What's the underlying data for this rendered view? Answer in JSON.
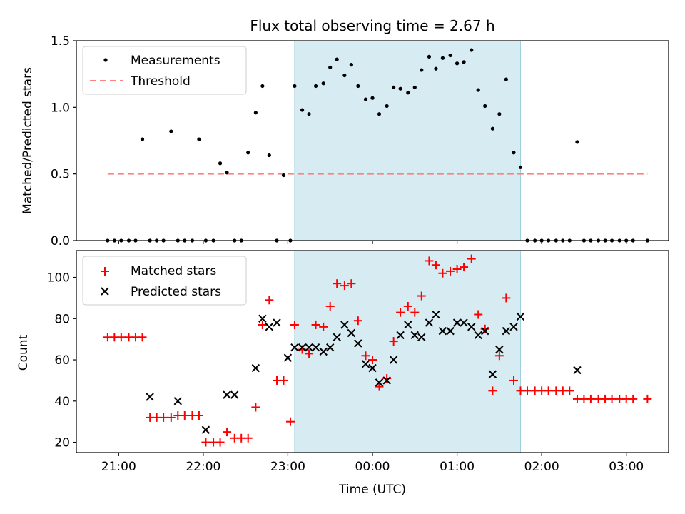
{
  "chart_data": [
    {
      "type": "scatter",
      "title": "Flux total observing time = 2.67 h",
      "ylabel": "Matched/Predicted stars",
      "xlabel": "",
      "xlim": [
        20.5,
        27.5
      ],
      "ylim": [
        0,
        1.5
      ],
      "yticks": [
        0,
        0.5,
        1.0,
        1.5
      ],
      "ytick_labels": [
        "0.0",
        "0.5",
        "1.0",
        "1.5"
      ],
      "highlight_span": [
        23.08,
        25.75
      ],
      "legend": {
        "position": "upper-left",
        "entries": [
          "Measurements",
          "Threshold"
        ]
      },
      "threshold": {
        "name": "Threshold",
        "x": [
          20.87,
          27.25
        ],
        "y": 0.5,
        "color": "#ff8080"
      },
      "series": [
        {
          "name": "Measurements",
          "color": "#000000",
          "x": [
            20.87,
            20.95,
            21.03,
            21.12,
            21.2,
            21.28,
            21.37,
            21.45,
            21.53,
            21.62,
            21.7,
            21.78,
            21.87,
            21.95,
            22.03,
            22.12,
            22.2,
            22.28,
            22.37,
            22.45,
            22.53,
            22.62,
            22.7,
            22.78,
            22.87,
            22.95,
            23.03,
            23.08,
            23.17,
            23.25,
            23.33,
            23.42,
            23.5,
            23.58,
            23.67,
            23.75,
            23.83,
            23.92,
            24.0,
            24.08,
            24.17,
            24.25,
            24.33,
            24.42,
            24.5,
            24.58,
            24.67,
            24.75,
            24.83,
            24.92,
            25.0,
            25.08,
            25.17,
            25.25,
            25.33,
            25.42,
            25.5,
            25.58,
            25.67,
            25.75,
            25.83,
            25.92,
            26.0,
            26.08,
            26.17,
            26.25,
            26.33,
            26.42,
            26.5,
            26.58,
            26.67,
            26.75,
            26.83,
            26.92,
            27.0,
            27.08,
            27.25
          ],
          "y": [
            0,
            0,
            0,
            0,
            0,
            0.76,
            0,
            0,
            0,
            0.82,
            0,
            0,
            0,
            0.76,
            0,
            0,
            0.58,
            0.51,
            0,
            0,
            0.66,
            0.96,
            1.16,
            0.64,
            0,
            0.49,
            0,
            1.16,
            0.98,
            0.95,
            1.16,
            1.18,
            1.3,
            1.36,
            1.24,
            1.32,
            1.16,
            1.06,
            1.07,
            0.95,
            1.01,
            1.15,
            1.14,
            1.11,
            1.15,
            1.28,
            1.38,
            1.29,
            1.37,
            1.39,
            1.33,
            1.34,
            1.43,
            1.13,
            1.01,
            0.84,
            0.95,
            1.21,
            0.66,
            0.55,
            0,
            0,
            0,
            0,
            0,
            0,
            0,
            0.74,
            0,
            0,
            0,
            0,
            0,
            0,
            0,
            0,
            0
          ]
        }
      ]
    },
    {
      "type": "scatter",
      "title": "",
      "xlabel": "Time (UTC)",
      "ylabel": "Count",
      "xlim": [
        20.5,
        27.5
      ],
      "ylim": [
        15,
        113
      ],
      "yticks": [
        20,
        40,
        60,
        80,
        100
      ],
      "xticks": [
        21,
        22,
        23,
        24,
        25,
        26,
        27
      ],
      "xtick_labels": [
        "21:00",
        "22:00",
        "23:00",
        "00:00",
        "01:00",
        "02:00",
        "03:00"
      ],
      "highlight_span": [
        23.08,
        25.75
      ],
      "legend": {
        "position": "upper-left",
        "entries": [
          "Matched stars",
          "Predicted stars"
        ]
      },
      "series": [
        {
          "name": "Matched stars",
          "color": "#ff0000",
          "marker": "plus",
          "x": [
            20.87,
            20.95,
            21.03,
            21.12,
            21.2,
            21.28,
            21.37,
            21.45,
            21.53,
            21.62,
            21.7,
            21.78,
            21.87,
            21.95,
            22.03,
            22.12,
            22.2,
            22.28,
            22.37,
            22.45,
            22.53,
            22.62,
            22.7,
            22.78,
            22.87,
            22.95,
            23.03,
            23.08,
            23.17,
            23.25,
            23.33,
            23.42,
            23.5,
            23.58,
            23.67,
            23.75,
            23.83,
            23.92,
            24.0,
            24.08,
            24.17,
            24.25,
            24.33,
            24.42,
            24.5,
            24.58,
            24.67,
            24.75,
            24.83,
            24.92,
            25.0,
            25.08,
            25.17,
            25.25,
            25.33,
            25.42,
            25.5,
            25.58,
            25.67,
            25.75,
            25.83,
            25.92,
            26.0,
            26.08,
            26.17,
            26.25,
            26.33,
            26.42,
            26.5,
            26.58,
            26.67,
            26.75,
            26.83,
            26.92,
            27.0,
            27.08,
            27.25
          ],
          "y": [
            71,
            71,
            71,
            71,
            71,
            71,
            32,
            32,
            32,
            32,
            33,
            33,
            33,
            33,
            20,
            20,
            20,
            25,
            22,
            22,
            22,
            37,
            77,
            89,
            50,
            50,
            30,
            77,
            65,
            63,
            77,
            76,
            86,
            97,
            96,
            97,
            79,
            62,
            60,
            47,
            51,
            69,
            83,
            86,
            83,
            91,
            108,
            106,
            102,
            103,
            104,
            105,
            109,
            82,
            75,
            45,
            62,
            90,
            50,
            45,
            45,
            45,
            45,
            45,
            45,
            45,
            45,
            41,
            41,
            41,
            41,
            41,
            41,
            41,
            41,
            41,
            41
          ]
        },
        {
          "name": "Predicted stars",
          "color": "#000000",
          "marker": "x",
          "x": [
            21.37,
            21.7,
            22.03,
            22.28,
            22.37,
            22.62,
            22.7,
            22.78,
            22.87,
            23.0,
            23.08,
            23.17,
            23.25,
            23.33,
            23.42,
            23.5,
            23.58,
            23.67,
            23.75,
            23.83,
            23.92,
            24.0,
            24.08,
            24.17,
            24.25,
            24.33,
            24.42,
            24.5,
            24.58,
            24.67,
            24.75,
            24.83,
            24.92,
            25.0,
            25.08,
            25.17,
            25.25,
            25.33,
            25.42,
            25.5,
            25.58,
            25.67,
            25.75,
            26.42
          ],
          "y": [
            42,
            40,
            26,
            43,
            43,
            56,
            80,
            76,
            78,
            61,
            66,
            66,
            66,
            66,
            64,
            66,
            71,
            77,
            73,
            68,
            58,
            56,
            49,
            50,
            60,
            72,
            77,
            72,
            71,
            78,
            82,
            74,
            74,
            78,
            78,
            76,
            72,
            74,
            53,
            65,
            74,
            76,
            81,
            55
          ]
        }
      ]
    }
  ]
}
